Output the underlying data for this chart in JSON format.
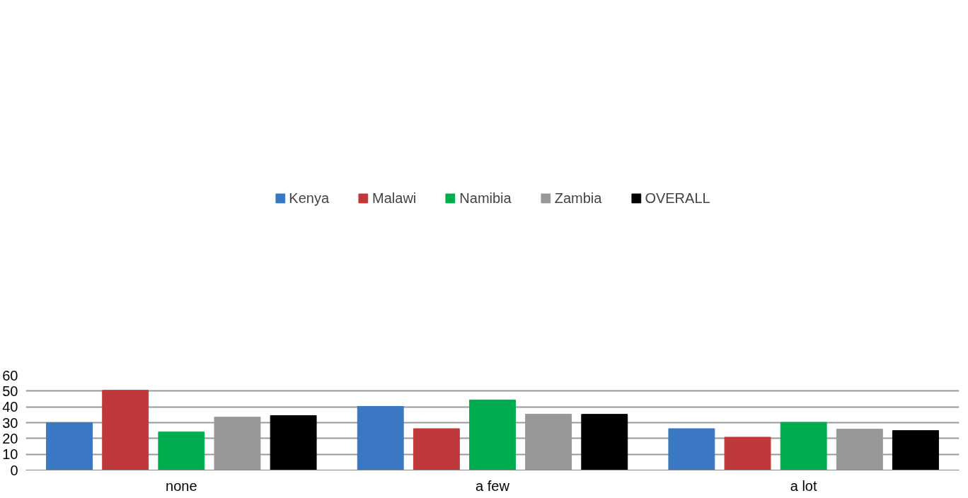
{
  "chart_data": {
    "type": "bar",
    "categories": [
      "none",
      "a few",
      "a lot"
    ],
    "series": [
      {
        "name": "Kenya",
        "color": "#3a78c3",
        "values": [
          30.0,
          40.3,
          26.2
        ]
      },
      {
        "name": "Malawi",
        "color": "#c0393a",
        "values": [
          50.5,
          26.2,
          20.8
        ]
      },
      {
        "name": "Namibia",
        "color": "#00ad4e",
        "values": [
          24.1,
          44.4,
          30.2
        ]
      },
      {
        "name": "Zambia",
        "color": "#989898",
        "values": [
          33.5,
          35.4,
          25.9
        ]
      },
      {
        "name": "OVERALL",
        "color": "#000000",
        "values": [
          34.5,
          35.3,
          25.0
        ]
      }
    ],
    "ylim": [
      0,
      60
    ],
    "yticks": [
      0,
      10,
      20,
      30,
      40,
      50,
      60
    ],
    "grid": "y",
    "legend": "top"
  }
}
